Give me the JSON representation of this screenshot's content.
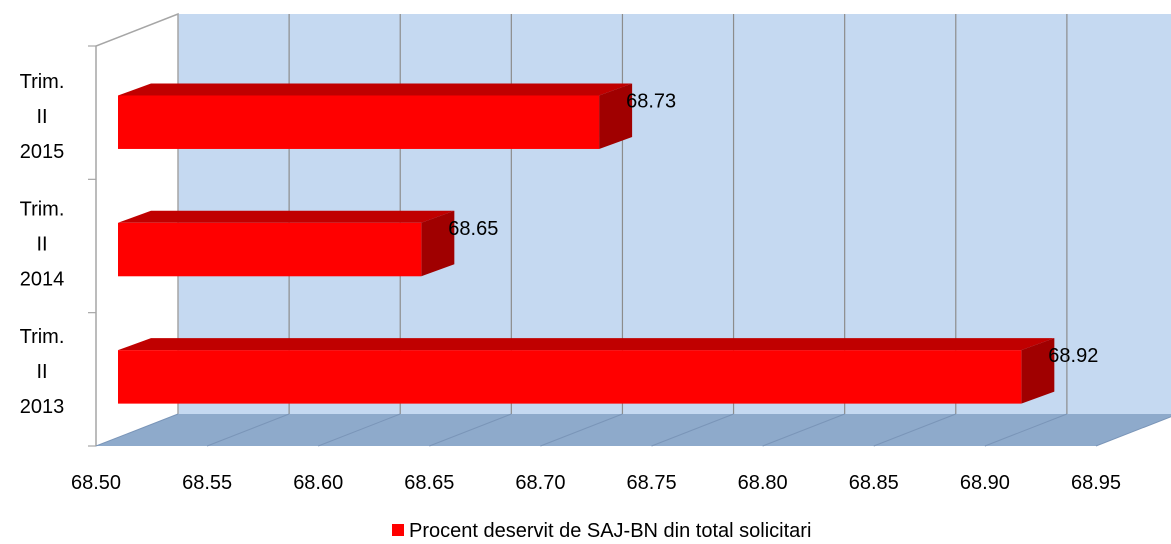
{
  "chart_data": {
    "type": "bar",
    "orientation": "horizontal",
    "style": "3d",
    "categories": [
      [
        "Trim.",
        "II",
        "2015"
      ],
      [
        "Trim.",
        "II",
        "2014"
      ],
      [
        "Trim.",
        "II",
        "2013"
      ]
    ],
    "series": [
      {
        "name": "Procent deservit de SAJ-BN din total solicitari",
        "values": [
          68.73,
          68.65,
          68.92
        ],
        "color": "#ff0000"
      }
    ],
    "data_labels": [
      "68.73",
      "68.65",
      "68.92"
    ],
    "xlim": [
      68.5,
      68.95
    ],
    "x_ticks": [
      "68.50",
      "68.55",
      "68.60",
      "68.65",
      "68.70",
      "68.75",
      "68.80",
      "68.85",
      "68.90",
      "68.95"
    ],
    "grid": true,
    "legend_position": "bottom",
    "colors": {
      "wall": "#c5d9f1",
      "floor": "#8eaacb",
      "grid": "#8c8c8c",
      "bar_front": "#ff0000",
      "bar_top": "#c00000",
      "bar_side": "#a00000"
    }
  }
}
